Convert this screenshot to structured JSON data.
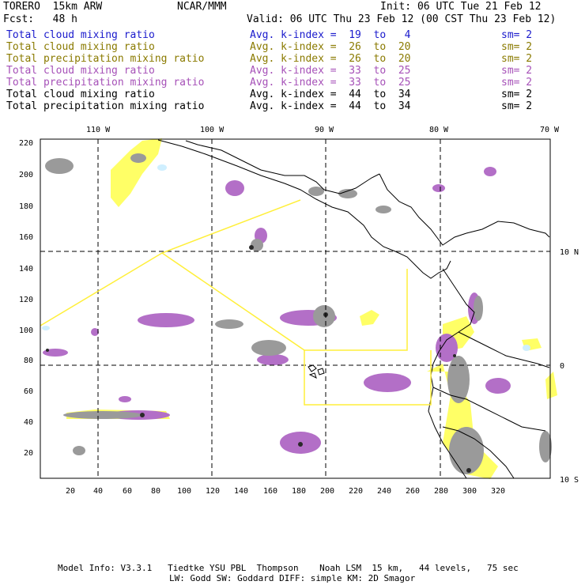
{
  "header": {
    "model": "TORERO  15km ARW",
    "org": "NCAR/MMM",
    "init": "Init: 06 UTC Tue 21 Feb 12",
    "fcst": "Fcst:   48 h",
    "valid": "Valid: 06 UTC Thu 23 Feb 12 (00 CST Thu 23 Feb 12)"
  },
  "legend": [
    {
      "name": "Total cloud mixing ratio",
      "kindex": "Avg. k-index =  19  to   4",
      "sm": "sm= 2",
      "color": "#1a1acc"
    },
    {
      "name": "Total cloud mixing ratio",
      "kindex": "Avg. k-index =  26  to  20",
      "sm": "sm= 2",
      "color": "#8a7a00"
    },
    {
      "name": "Total precipitation mixing ratio",
      "kindex": "Avg. k-index =  26  to  20",
      "sm": "sm= 2",
      "color": "#8a7a00"
    },
    {
      "name": "Total cloud mixing ratio",
      "kindex": "Avg. k-index =  33  to  25",
      "sm": "sm= 2",
      "color": "#a651b8"
    },
    {
      "name": "Total precipitation mixing ratio",
      "kindex": "Avg. k-index =  33  to  25",
      "sm": "sm= 2",
      "color": "#a651b8"
    },
    {
      "name": "Total cloud mixing ratio",
      "kindex": "Avg. k-index =  44  to  34",
      "sm": "sm= 2",
      "color": "#000000"
    },
    {
      "name": "Total precipitation mixing ratio",
      "kindex": "Avg. k-index =  44  to  34",
      "sm": "sm= 2",
      "color": "#000000"
    }
  ],
  "map": {
    "lon_labels": [
      "110 W",
      "100 W",
      "90 W",
      "80 W",
      "70 W"
    ],
    "lat_labels": [
      "10 N",
      "0",
      "10 S"
    ],
    "x_ticks": [
      "20",
      "40",
      "60",
      "80",
      "100",
      "120",
      "140",
      "160",
      "180",
      "200",
      "220",
      "240",
      "260",
      "280",
      "300",
      "320"
    ],
    "y_ticks": [
      "220",
      "200",
      "180",
      "160",
      "140",
      "120",
      "100",
      "80",
      "60",
      "40",
      "20"
    ],
    "colors": {
      "yellow": "#ffff66",
      "purple": "#b36fc7",
      "gray": "#9a9a9a",
      "lightblue": "#cfefff",
      "box": "#ffef3a"
    }
  },
  "footer": {
    "line1": "Model Info: V3.3.1   Tiedtke YSU PBL  Thompson    Noah LSM  15 km,   44 levels,   75 sec",
    "line2": "LW: Godd SW: Goddard DIFF: simple KM: 2D Smagor"
  }
}
